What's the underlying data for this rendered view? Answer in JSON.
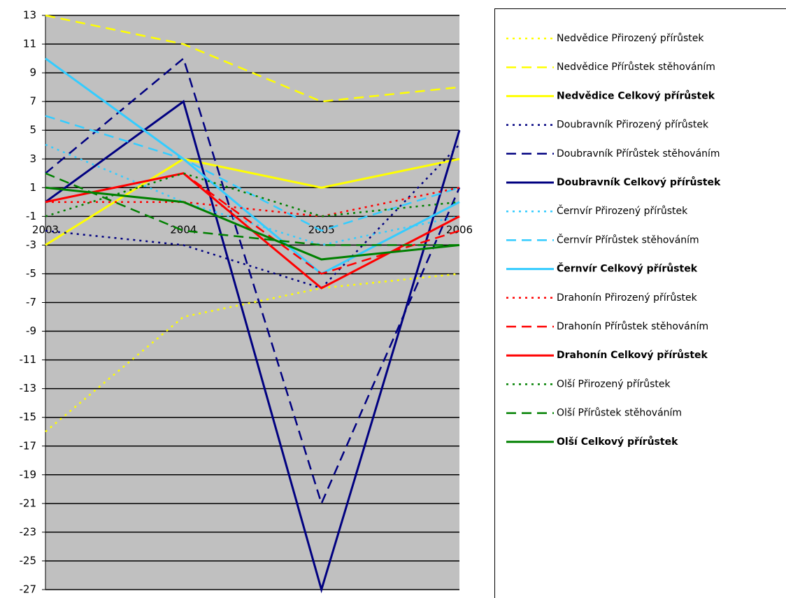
{
  "chart_data": {
    "type": "line",
    "categories": [
      "2003",
      "2004",
      "2005",
      "2006"
    ],
    "ylim": [
      -27,
      13
    ],
    "yticks": [
      13,
      11,
      9,
      7,
      5,
      3,
      1,
      -1,
      -3,
      -5,
      -7,
      -9,
      -11,
      -13,
      -15,
      -17,
      -19,
      -21,
      -23,
      -25,
      -27
    ],
    "grid": true,
    "legend": "right",
    "series": [
      {
        "name": "Nedvědice Přirozený přírůstek",
        "color": "#ffff00",
        "dash": "dot",
        "bold": false,
        "values": [
          -16,
          -8,
          -6,
          -5
        ]
      },
      {
        "name": "Nedvědice Přírůstek stěhováním",
        "color": "#ffff00",
        "dash": "dash",
        "bold": false,
        "values": [
          13,
          11,
          7,
          8
        ]
      },
      {
        "name": "Nedvědice Celkový přírůstek",
        "color": "#ffff00",
        "dash": "solid",
        "bold": true,
        "values": [
          -3,
          3,
          1,
          3
        ]
      },
      {
        "name": "Doubravník Přirozený přírůstek",
        "color": "#000080",
        "dash": "dot",
        "bold": false,
        "values": [
          -2,
          -3,
          -6,
          4
        ]
      },
      {
        "name": "Doubravník Přírůstek stěhováním",
        "color": "#000080",
        "dash": "dash",
        "bold": false,
        "values": [
          2,
          10,
          -21,
          1
        ]
      },
      {
        "name": "Doubravník Celkový přírůstek",
        "color": "#000080",
        "dash": "solid",
        "bold": true,
        "values": [
          0,
          7,
          -27,
          5
        ]
      },
      {
        "name": "Černvír Přirozený přírůstek",
        "color": "#33ccff",
        "dash": "dot",
        "bold": false,
        "values": [
          4,
          0,
          -3,
          -1
        ]
      },
      {
        "name": "Černvír Přírůstek stěhováním",
        "color": "#33ccff",
        "dash": "dash",
        "bold": false,
        "values": [
          6,
          3,
          -2,
          1
        ]
      },
      {
        "name": "Černvír Celkový přírůstek",
        "color": "#33ccff",
        "dash": "solid",
        "bold": true,
        "values": [
          10,
          3,
          -5,
          0
        ]
      },
      {
        "name": "Drahonín Přirozený přírůstek",
        "color": "#ff0000",
        "dash": "dot",
        "bold": false,
        "values": [
          0,
          0,
          -1,
          1
        ]
      },
      {
        "name": "Drahonín Přírůstek stěhováním",
        "color": "#ff0000",
        "dash": "dash",
        "bold": false,
        "values": [
          0,
          2,
          -5,
          -2
        ]
      },
      {
        "name": "Drahonín Celkový přírůstek",
        "color": "#ff0000",
        "dash": "solid",
        "bold": true,
        "values": [
          0,
          2,
          -6,
          -1
        ]
      },
      {
        "name": "Olší Přirozený přírůstek",
        "color": "#008000",
        "dash": "dot",
        "bold": false,
        "values": [
          -1,
          2,
          -1,
          0
        ]
      },
      {
        "name": "Olší Přírůstek stěhováním",
        "color": "#008000",
        "dash": "dash",
        "bold": false,
        "values": [
          2,
          -2,
          -3,
          -3
        ]
      },
      {
        "name": "Olší Celkový přírůstek",
        "color": "#008000",
        "dash": "solid",
        "bold": true,
        "values": [
          1,
          0,
          -4,
          -3
        ]
      }
    ]
  }
}
